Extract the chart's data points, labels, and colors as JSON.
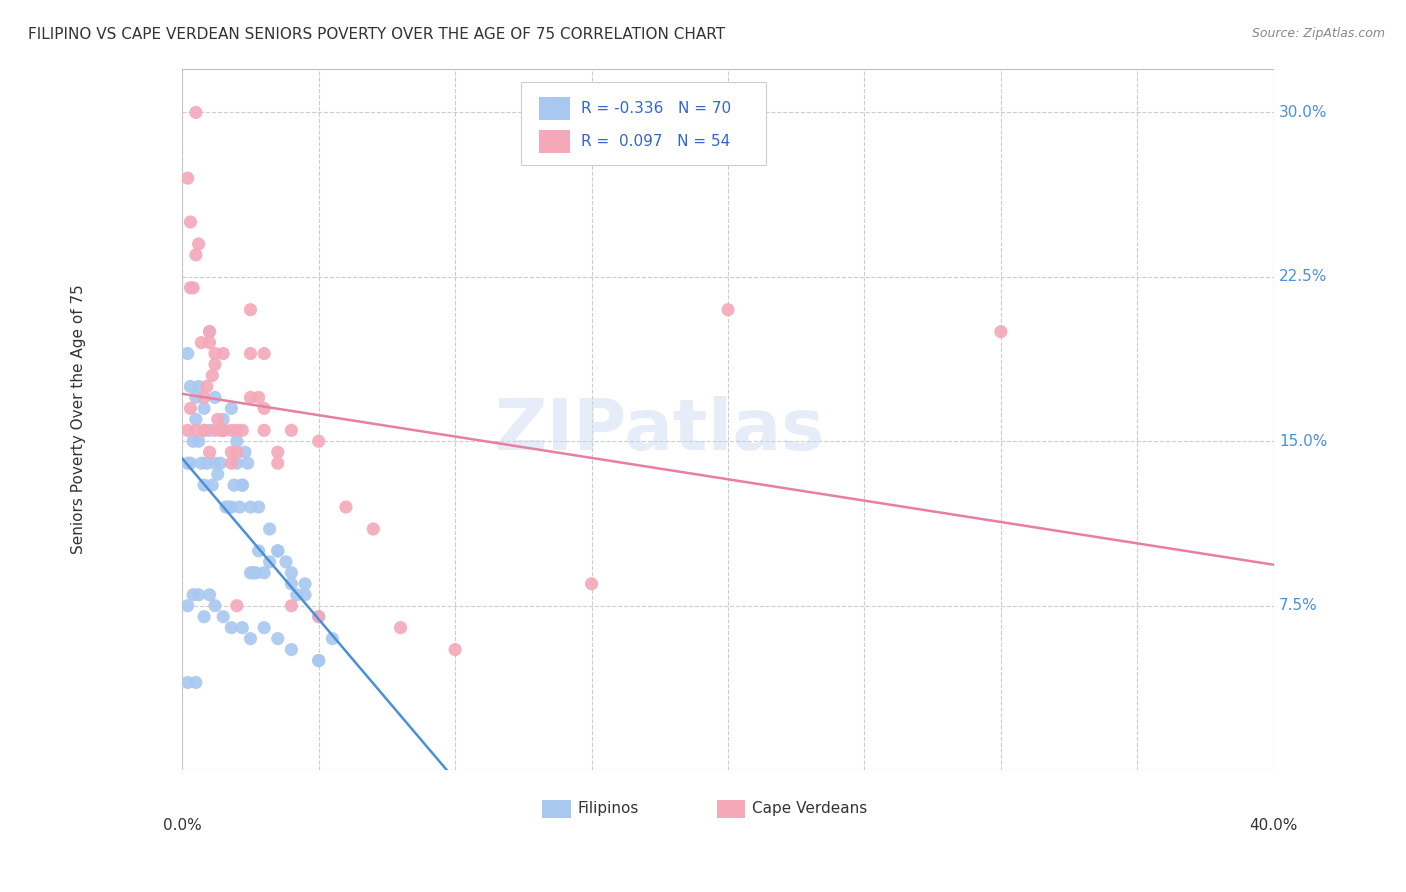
{
  "title": "FILIPINO VS CAPE VERDEAN SENIORS POVERTY OVER THE AGE OF 75 CORRELATION CHART",
  "source": "Source: ZipAtlas.com",
  "ylabel": "Seniors Poverty Over the Age of 75",
  "ytick_labels": [
    "30.0%",
    "22.5%",
    "15.0%",
    "7.5%"
  ],
  "ytick_values": [
    0.3,
    0.225,
    0.15,
    0.075
  ],
  "xlim": [
    0.0,
    0.4
  ],
  "ylim": [
    0.0,
    0.32
  ],
  "filipino_color": "#a8c8f0",
  "cape_verdean_color": "#f4a8b8",
  "filipino_R": -0.336,
  "filipino_N": 70,
  "cape_verdean_R": 0.097,
  "cape_verdean_N": 54,
  "watermark": "ZIPatlas",
  "background_color": "#ffffff",
  "filipino_x": [
    0.002,
    0.003,
    0.004,
    0.005,
    0.006,
    0.007,
    0.008,
    0.009,
    0.01,
    0.011,
    0.012,
    0.013,
    0.014,
    0.015,
    0.016,
    0.017,
    0.018,
    0.019,
    0.02,
    0.021,
    0.022,
    0.023,
    0.024,
    0.025,
    0.026,
    0.027,
    0.028,
    0.03,
    0.032,
    0.035,
    0.038,
    0.04,
    0.042,
    0.045,
    0.05,
    0.055,
    0.002,
    0.003,
    0.005,
    0.006,
    0.008,
    0.01,
    0.012,
    0.015,
    0.018,
    0.02,
    0.022,
    0.025,
    0.028,
    0.032,
    0.035,
    0.04,
    0.045,
    0.05,
    0.002,
    0.004,
    0.006,
    0.008,
    0.01,
    0.012,
    0.015,
    0.018,
    0.022,
    0.025,
    0.03,
    0.035,
    0.04,
    0.05,
    0.002,
    0.005
  ],
  "filipino_y": [
    0.14,
    0.14,
    0.15,
    0.16,
    0.15,
    0.14,
    0.13,
    0.14,
    0.155,
    0.13,
    0.14,
    0.135,
    0.14,
    0.155,
    0.12,
    0.12,
    0.12,
    0.13,
    0.15,
    0.12,
    0.13,
    0.145,
    0.14,
    0.09,
    0.09,
    0.09,
    0.1,
    0.09,
    0.095,
    0.1,
    0.095,
    0.085,
    0.08,
    0.085,
    0.05,
    0.06,
    0.19,
    0.175,
    0.17,
    0.175,
    0.165,
    0.2,
    0.17,
    0.16,
    0.165,
    0.14,
    0.13,
    0.12,
    0.12,
    0.11,
    0.1,
    0.09,
    0.08,
    0.07,
    0.075,
    0.08,
    0.08,
    0.07,
    0.08,
    0.075,
    0.07,
    0.065,
    0.065,
    0.06,
    0.065,
    0.06,
    0.055,
    0.05,
    0.04,
    0.04
  ],
  "cape_verdean_x": [
    0.002,
    0.003,
    0.004,
    0.005,
    0.006,
    0.007,
    0.008,
    0.009,
    0.01,
    0.011,
    0.012,
    0.013,
    0.014,
    0.015,
    0.018,
    0.02,
    0.022,
    0.025,
    0.028,
    0.03,
    0.035,
    0.04,
    0.05,
    0.06,
    0.07,
    0.08,
    0.1,
    0.15,
    0.2,
    0.002,
    0.003,
    0.005,
    0.008,
    0.01,
    0.012,
    0.015,
    0.018,
    0.02,
    0.025,
    0.03,
    0.035,
    0.04,
    0.05,
    0.003,
    0.005,
    0.008,
    0.01,
    0.012,
    0.015,
    0.018,
    0.02,
    0.025,
    0.03,
    0.3
  ],
  "cape_verdean_y": [
    0.155,
    0.22,
    0.22,
    0.235,
    0.24,
    0.195,
    0.17,
    0.175,
    0.195,
    0.18,
    0.185,
    0.16,
    0.155,
    0.155,
    0.155,
    0.145,
    0.155,
    0.21,
    0.17,
    0.165,
    0.14,
    0.155,
    0.15,
    0.12,
    0.11,
    0.065,
    0.055,
    0.085,
    0.21,
    0.27,
    0.25,
    0.155,
    0.155,
    0.2,
    0.19,
    0.19,
    0.14,
    0.155,
    0.17,
    0.155,
    0.145,
    0.075,
    0.07,
    0.165,
    0.3,
    0.155,
    0.145,
    0.155,
    0.155,
    0.145,
    0.075,
    0.19,
    0.19,
    0.2
  ]
}
